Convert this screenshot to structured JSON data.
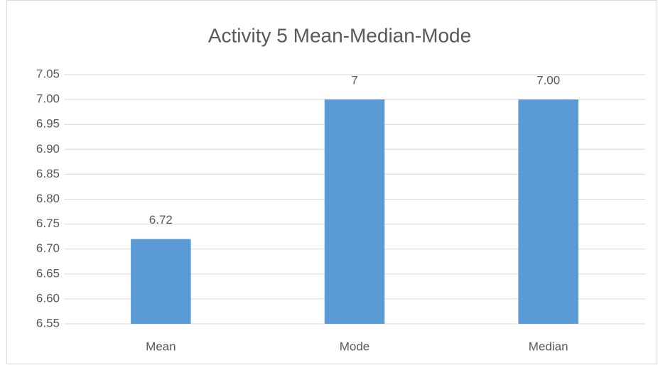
{
  "chart_data": {
    "type": "bar",
    "title": "Activity 5 Mean-Median-Mode",
    "categories": [
      "Mean",
      "Mode",
      "Median"
    ],
    "values": [
      6.72,
      7,
      7
    ],
    "value_labels": [
      "6.72",
      "7",
      "7.00"
    ],
    "color": "#5b9bd5",
    "ylim": [
      6.55,
      7.05
    ],
    "yticks": [
      6.55,
      {
        "value": 6.6,
        "label": "6.60"
      },
      6.65,
      {
        "value": 6.7,
        "label": "6.70"
      },
      6.75,
      {
        "value": 6.8,
        "label": "6.80"
      },
      6.85,
      {
        "value": 6.9,
        "label": "6.90"
      },
      6.95,
      {
        "value": 7,
        "label": "7.00"
      },
      7.05
    ],
    "grid": true
  }
}
